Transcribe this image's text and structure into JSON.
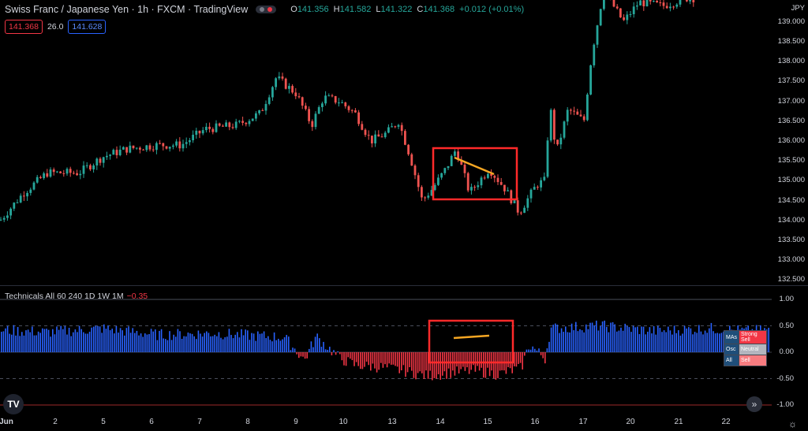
{
  "header": {
    "title": "Swiss Franc / Japanese Yen · 1h · FXCM · TradingView",
    "ohlc": {
      "o_label": "O",
      "o": "141.356",
      "h_label": "H",
      "h": "141.582",
      "l_label": "L",
      "l": "141.322",
      "c_label": "C",
      "c": "141.368",
      "change": "+0.012 (+0.01%)"
    },
    "sell_price": "141.368",
    "spread": "26.0",
    "buy_price": "141.628"
  },
  "currency_label": "JPY",
  "indicator": {
    "label": "Technicals All 60 240 1D 1W 1M",
    "value": "−0.35"
  },
  "summary_table": [
    {
      "key": "MAs",
      "value": "Strong Sell",
      "color": "#f23645"
    },
    {
      "key": "Osc",
      "value": "Neutral",
      "color": "#b2b5be"
    },
    {
      "key": "All",
      "value": "Sell",
      "color": "#f77c80"
    }
  ],
  "colors": {
    "up": "#26a69a",
    "down": "#ef5350",
    "hist_pos": "#2962ff",
    "hist_neg": "#f23645",
    "highlight_box": "#ff2a2a",
    "trendline": "#f5a623"
  },
  "chart_data": {
    "type": "candlestick",
    "price_axis": {
      "ticks": [
        "139.000",
        "138.500",
        "138.000",
        "137.500",
        "137.000",
        "136.500",
        "136.000",
        "135.500",
        "135.000",
        "134.500",
        "134.000",
        "133.500",
        "133.000",
        "132.500"
      ],
      "range": [
        132.45,
        139.55
      ]
    },
    "indicator_axis": {
      "ticks": [
        "1.00",
        "0.50",
        "0.00",
        "-0.50",
        "-1.00"
      ],
      "range": [
        -1.0,
        1.0
      ]
    },
    "x_labels": [
      "Jun",
      "2",
      "5",
      "6",
      "7",
      "8",
      "9",
      "10",
      "13",
      "14",
      "15",
      "16",
      "17",
      "20",
      "21",
      "22"
    ],
    "close_anchors": [
      [
        0,
        134.0
      ],
      [
        30,
        134.7
      ],
      [
        60,
        135.2
      ],
      [
        100,
        135.2
      ],
      [
        130,
        135.6
      ],
      [
        160,
        135.8
      ],
      [
        200,
        135.9
      ],
      [
        230,
        135.9
      ],
      [
        260,
        136.3
      ],
      [
        300,
        136.4
      ],
      [
        330,
        136.7
      ],
      [
        350,
        137.6
      ],
      [
        375,
        137.2
      ],
      [
        395,
        136.4
      ],
      [
        410,
        137.1
      ],
      [
        430,
        137.0
      ],
      [
        450,
        136.7
      ],
      [
        470,
        136.0
      ],
      [
        490,
        136.2
      ],
      [
        505,
        136.5
      ],
      [
        520,
        135.6
      ],
      [
        535,
        134.5
      ],
      [
        548,
        134.8
      ],
      [
        565,
        135.3
      ],
      [
        578,
        135.8
      ],
      [
        595,
        134.7
      ],
      [
        620,
        135.3
      ],
      [
        640,
        134.8
      ],
      [
        658,
        134.2
      ],
      [
        680,
        134.9
      ],
      [
        690,
        135.0
      ],
      [
        697,
        136.9
      ],
      [
        705,
        135.7
      ],
      [
        720,
        136.8
      ],
      [
        740,
        136.5
      ],
      [
        750,
        138.2
      ],
      [
        765,
        139.8
      ],
      [
        790,
        139.0
      ],
      [
        810,
        139.5
      ],
      [
        840,
        139.4
      ],
      [
        870,
        139.6
      ],
      [
        880,
        139.6
      ]
    ],
    "indicator_anchors": [
      [
        0,
        0.42
      ],
      [
        60,
        0.38
      ],
      [
        130,
        0.45
      ],
      [
        200,
        0.33
      ],
      [
        270,
        0.36
      ],
      [
        360,
        0.28
      ],
      [
        385,
        -0.15
      ],
      [
        400,
        0.3
      ],
      [
        430,
        -0.12
      ],
      [
        450,
        -0.25
      ],
      [
        480,
        -0.28
      ],
      [
        510,
        -0.35
      ],
      [
        540,
        -0.45
      ],
      [
        575,
        -0.38
      ],
      [
        600,
        -0.35
      ],
      [
        630,
        -0.42
      ],
      [
        660,
        -0.3
      ],
      [
        670,
        0.15
      ],
      [
        690,
        -0.12
      ],
      [
        697,
        0.45
      ],
      [
        760,
        0.5
      ],
      [
        830,
        0.4
      ],
      [
        900,
        0.45
      ],
      [
        945,
        0.4
      ],
      [
        975,
        0.42
      ]
    ]
  }
}
